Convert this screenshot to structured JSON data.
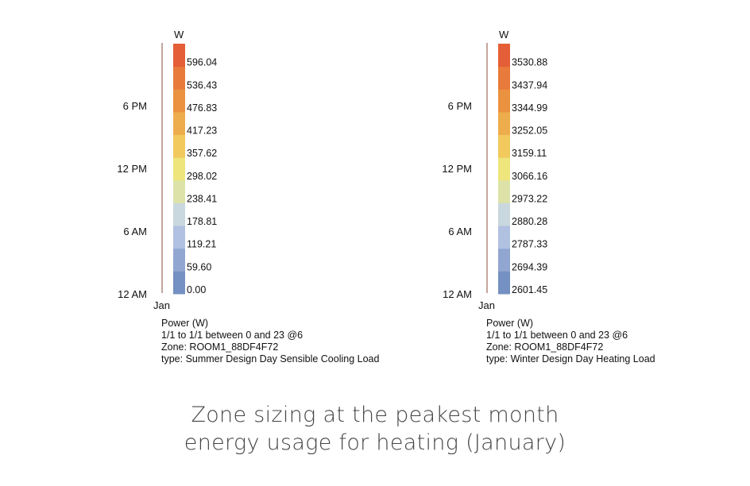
{
  "chart_data": [
    {
      "type": "heatmap",
      "legend_unit": "W",
      "y_ticks": [
        "12 AM",
        "6 AM",
        "12 PM",
        "6 PM"
      ],
      "x_ticks": [
        "Jan"
      ],
      "legend_values": [
        "0.00",
        "59.60",
        "119.21",
        "178.81",
        "238.41",
        "298.02",
        "357.62",
        "417.23",
        "476.83",
        "536.43",
        "596.04"
      ],
      "info_lines": [
        "Power (W)",
        "1/1 to 1/1 between 0 and 23 @6",
        "Zone: ROOM1_88DF4F72",
        "type: Summer Design Day Sensible Cooling Load"
      ]
    },
    {
      "type": "heatmap",
      "legend_unit": "W",
      "y_ticks": [
        "12 AM",
        "6 AM",
        "12 PM",
        "6 PM"
      ],
      "x_ticks": [
        "Jan"
      ],
      "legend_values": [
        "2601.45",
        "2694.39",
        "2787.33",
        "2880.28",
        "2973.22",
        "3066.16",
        "3159.11",
        "3252.05",
        "3344.99",
        "3437.94",
        "3530.88"
      ],
      "info_lines": [
        "Power (W)",
        "1/1 to 1/1 between 0 and 23 @6",
        "Zone: ROOM1_88DF4F72",
        "type: Winter Design Day Heating Load"
      ]
    }
  ],
  "legend_colors": [
    "#7590c2",
    "#92a6d2",
    "#b0c1e2",
    "#c9d7df",
    "#dde3a8",
    "#eee57c",
    "#f2c95c",
    "#eead4c",
    "#ea9240",
    "#e87a3b",
    "#e45e37"
  ],
  "axis_line_color": "#8a4b3a",
  "caption": {
    "line1": "Zone sizing at the peakest month",
    "line2": "energy usage for heating (January)"
  }
}
